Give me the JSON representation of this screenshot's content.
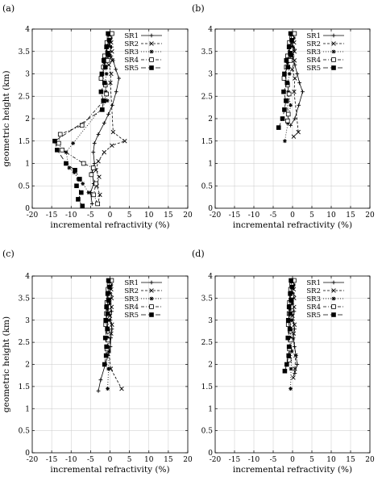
{
  "figure": {
    "panel_labels": [
      "(a)",
      "(b)",
      "(c)",
      "(d)"
    ]
  },
  "chart_data": [
    {
      "type": "line",
      "panel": "(a)",
      "xlabel": "incremental refractivity (%)",
      "ylabel": "geometric height (km)",
      "xlim": [
        -20,
        20
      ],
      "ylim": [
        0,
        4
      ],
      "xticks": [
        -20,
        -15,
        -10,
        -5,
        0,
        5,
        10,
        15,
        20
      ],
      "yticks": [
        0,
        0.5,
        1,
        1.5,
        2,
        2.5,
        3,
        3.5,
        4
      ],
      "grid": true,
      "legend": "top-right",
      "series": [
        {
          "name": "SR1",
          "marker": "plus",
          "dash": "",
          "x": [
            0,
            0.2,
            -0.3,
            0.4,
            -0.2,
            0.3,
            0.8,
            1.5,
            2.3,
            1.6,
            0.6,
            -0.4,
            -1.5,
            -3,
            -4,
            -4.3,
            -4,
            -4.6,
            -4.2,
            -5,
            -4.6
          ],
          "y": [
            3.9,
            3.8,
            3.7,
            3.6,
            3.5,
            3.4,
            3.3,
            3.1,
            2.9,
            2.6,
            2.3,
            2.1,
            1.9,
            1.65,
            1.45,
            1.25,
            1.0,
            0.8,
            0.55,
            0.35,
            0.1
          ]
        },
        {
          "name": "SR2",
          "marker": "x",
          "dash": "3,2",
          "x": [
            0.2,
            -0.3,
            0.3,
            -0.5,
            0.5,
            -0.2,
            0.6,
            -0.3,
            0.3,
            0.1,
            0.8,
            3.8,
            0.5,
            -1.5,
            -3,
            -3.6,
            -2.8,
            -3.4,
            -2.6,
            -3.1
          ],
          "y": [
            3.9,
            3.8,
            3.7,
            3.6,
            3.5,
            3.4,
            3.3,
            3.2,
            3.0,
            2.8,
            1.7,
            1.5,
            1.4,
            1.25,
            1.05,
            0.85,
            0.7,
            0.5,
            0.3,
            0.1
          ]
        },
        {
          "name": "SR3",
          "marker": "star",
          "dash": "1,2",
          "x": [
            -0.3,
            0.2,
            -0.6,
            0.1,
            -0.8,
            -0.4,
            -1.5,
            -0.9,
            -1.3,
            -1.1,
            -0.7,
            -9.5,
            -11.3,
            -10.5,
            -9.2,
            -8.2,
            -7,
            -5.5
          ],
          "y": [
            3.9,
            3.8,
            3.7,
            3.6,
            3.5,
            3.4,
            3.25,
            3.0,
            2.8,
            2.6,
            2.4,
            1.45,
            1.25,
            0.9,
            0.8,
            0.65,
            0.55,
            0.35
          ]
        },
        {
          "name": "SR4",
          "marker": "square",
          "dash": "4,2,1,2",
          "x": [
            0.5,
            -0.2,
            -0.8,
            -0.4,
            -1.4,
            -0.6,
            -1.7,
            -2.3,
            -1.2,
            -0.9,
            -1.6,
            -7.2,
            -12.8,
            -13.2,
            -12.3,
            -6.8,
            -4.3,
            -4.8,
            -3.6,
            -4.2,
            -3.2
          ],
          "y": [
            3.9,
            3.8,
            3.7,
            3.55,
            3.4,
            3.3,
            3.15,
            2.9,
            2.75,
            2.55,
            2.4,
            1.85,
            1.65,
            1.45,
            1.3,
            1.0,
            0.9,
            0.75,
            0.55,
            0.3,
            0.1
          ]
        },
        {
          "name": "SR5",
          "marker": "fsquare",
          "dash": "6,3",
          "x": [
            -0.5,
            -0.2,
            -0.9,
            -0.6,
            -1.6,
            -1.2,
            -2.1,
            -1.4,
            -2.3,
            -1.7,
            -2,
            -14.2,
            -13.6,
            -11.3,
            -9,
            -7.8,
            -8.6,
            -7.4,
            -8.2,
            -7.1
          ],
          "y": [
            3.9,
            3.75,
            3.6,
            3.45,
            3.3,
            3.15,
            3.0,
            2.8,
            2.6,
            2.4,
            2.2,
            1.5,
            1.3,
            1.0,
            0.85,
            0.65,
            0.5,
            0.35,
            0.2,
            0.05
          ]
        }
      ]
    },
    {
      "type": "line",
      "panel": "(b)",
      "xlabel": "incremental refractivity (%)",
      "ylabel": "",
      "xlim": [
        -20,
        20
      ],
      "ylim": [
        0,
        4
      ],
      "xticks": [
        -20,
        -15,
        -10,
        -5,
        0,
        5,
        10,
        15,
        20
      ],
      "yticks": [
        0,
        0.5,
        1,
        1.5,
        2,
        2.5,
        3,
        3.5,
        4
      ],
      "grid": true,
      "legend": "top-right",
      "series": [
        {
          "name": "SR1",
          "marker": "plus",
          "dash": "",
          "x": [
            0,
            0.3,
            -0.2,
            0.5,
            0,
            0.6,
            1.2,
            1.8,
            2.6,
            1.6,
            0.6,
            -0.5
          ],
          "y": [
            3.9,
            3.8,
            3.7,
            3.55,
            3.4,
            3.2,
            3.0,
            2.8,
            2.6,
            2.3,
            2.0,
            1.85
          ]
        },
        {
          "name": "SR2",
          "marker": "x",
          "dash": "3,2",
          "x": [
            0.2,
            -0.2,
            0.4,
            -0.4,
            0.5,
            -0.1,
            0.5,
            -0.1,
            0.6,
            0.4,
            1.5,
            0.3
          ],
          "y": [
            3.9,
            3.8,
            3.7,
            3.6,
            3.5,
            3.4,
            3.3,
            3.1,
            2.9,
            2.6,
            1.7,
            1.6
          ]
        },
        {
          "name": "SR3",
          "marker": "star",
          "dash": "1,2",
          "x": [
            -0.3,
            0.3,
            -0.6,
            0.1,
            -0.8,
            -0.4,
            -1.3,
            -0.8,
            -1.2,
            -1.1,
            -0.5,
            -1.2,
            -2
          ],
          "y": [
            3.9,
            3.8,
            3.7,
            3.6,
            3.5,
            3.4,
            3.25,
            3.0,
            2.8,
            2.6,
            2.3,
            1.9,
            1.5
          ]
        },
        {
          "name": "SR4",
          "marker": "square",
          "dash": "4,2,1,2",
          "x": [
            0.5,
            -0.2,
            -0.8,
            -0.4,
            -1.3,
            -0.6,
            -1.6,
            -2.2,
            -1.3,
            -0.9,
            -1.5,
            -1.1,
            -1.3
          ],
          "y": [
            3.9,
            3.8,
            3.7,
            3.55,
            3.4,
            3.3,
            3.15,
            2.9,
            2.75,
            2.55,
            2.4,
            2.1,
            1.95
          ]
        },
        {
          "name": "SR5",
          "marker": "fsquare",
          "dash": "6,3",
          "x": [
            -0.5,
            -0.2,
            -0.9,
            -0.6,
            -1.6,
            -1.2,
            -2.1,
            -1.4,
            -2.3,
            -1.7,
            -2.1,
            -2.6,
            -3.6
          ],
          "y": [
            3.9,
            3.75,
            3.6,
            3.45,
            3.3,
            3.15,
            3.0,
            2.8,
            2.6,
            2.4,
            2.2,
            2.0,
            1.8
          ]
        }
      ]
    },
    {
      "type": "line",
      "panel": "(c)",
      "xlabel": "incremental refractivity (%)",
      "ylabel": "geometric height (km)",
      "xlim": [
        -20,
        20
      ],
      "ylim": [
        0,
        4
      ],
      "xticks": [
        -20,
        -15,
        -10,
        -5,
        0,
        5,
        10,
        15,
        20
      ],
      "yticks": [
        0,
        0.5,
        1,
        1.5,
        2,
        2.5,
        3,
        3.5,
        4
      ],
      "grid": true,
      "legend": "top-right",
      "series": [
        {
          "name": "SR1",
          "marker": "plus",
          "dash": "",
          "x": [
            0,
            0.2,
            -0.2,
            0.3,
            -0.1,
            0.4,
            0.1,
            0.5,
            0.2,
            0.1,
            -0.5,
            -1.2,
            -2.4,
            -3
          ],
          "y": [
            3.9,
            3.8,
            3.7,
            3.55,
            3.4,
            3.2,
            3.0,
            2.8,
            2.6,
            2.4,
            2.2,
            2.0,
            1.65,
            1.4
          ]
        },
        {
          "name": "SR2",
          "marker": "x",
          "dash": "3,2",
          "x": [
            0.2,
            -0.2,
            0.3,
            -0.3,
            0.4,
            -0.1,
            0.4,
            0,
            0.5,
            0.3,
            -0.3,
            0.2,
            3
          ],
          "y": [
            3.9,
            3.8,
            3.7,
            3.6,
            3.5,
            3.4,
            3.3,
            3.1,
            2.9,
            2.7,
            2.3,
            1.9,
            1.45
          ]
        },
        {
          "name": "SR3",
          "marker": "star",
          "dash": "1,2",
          "x": [
            -0.2,
            0.3,
            -0.4,
            0.1,
            -0.5,
            -0.2,
            -0.7,
            -0.3,
            -0.6,
            -0.5,
            -0.2,
            -0.4,
            -0.6
          ],
          "y": [
            3.9,
            3.8,
            3.7,
            3.6,
            3.5,
            3.4,
            3.25,
            3.0,
            2.8,
            2.6,
            2.3,
            1.9,
            1.45
          ]
        },
        {
          "name": "SR4",
          "marker": "square",
          "dash": "4,2,1,2",
          "x": [
            0.4,
            -0.2,
            -0.5,
            -0.2,
            -0.8,
            -0.3,
            -0.9,
            -1.1,
            -0.6,
            -0.5,
            -0.8
          ],
          "y": [
            3.9,
            3.8,
            3.7,
            3.55,
            3.4,
            3.3,
            3.15,
            2.9,
            2.75,
            2.55,
            2.35
          ]
        },
        {
          "name": "SR5",
          "marker": "fsquare",
          "dash": "6,3",
          "x": [
            -0.4,
            -0.1,
            -0.6,
            -0.4,
            -0.9,
            -0.6,
            -1.1,
            -0.7,
            -1.2,
            -0.9,
            -1,
            -1.4
          ],
          "y": [
            3.9,
            3.75,
            3.6,
            3.45,
            3.3,
            3.15,
            3.0,
            2.8,
            2.6,
            2.4,
            2.2,
            2.0
          ]
        }
      ]
    },
    {
      "type": "line",
      "panel": "(d)",
      "xlabel": "incremental refractivity (%)",
      "ylabel": "",
      "xlim": [
        -20,
        20
      ],
      "ylim": [
        0,
        4
      ],
      "xticks": [
        -20,
        -15,
        -10,
        -5,
        0,
        5,
        10,
        15,
        20
      ],
      "yticks": [
        0,
        0.5,
        1,
        1.5,
        2,
        2.5,
        3,
        3.5,
        4
      ],
      "grid": true,
      "legend": "top-right",
      "series": [
        {
          "name": "SR1",
          "marker": "plus",
          "dash": "",
          "x": [
            0,
            0.2,
            -0.2,
            0.3,
            -0.1,
            0.4,
            0.1,
            0.5,
            0.2,
            0.5,
            0.9,
            1.2,
            0.6
          ],
          "y": [
            3.9,
            3.8,
            3.7,
            3.55,
            3.4,
            3.2,
            3.0,
            2.8,
            2.6,
            2.4,
            2.2,
            2.0,
            1.8
          ]
        },
        {
          "name": "SR2",
          "marker": "x",
          "dash": "3,2",
          "x": [
            0.2,
            -0.2,
            0.3,
            -0.3,
            0.4,
            -0.1,
            0.4,
            0,
            0.5,
            0.3,
            0.8,
            0.6,
            0.2
          ],
          "y": [
            3.9,
            3.8,
            3.7,
            3.6,
            3.5,
            3.4,
            3.3,
            3.1,
            2.9,
            2.7,
            2.2,
            1.9,
            1.7
          ]
        },
        {
          "name": "SR3",
          "marker": "star",
          "dash": "1,2",
          "x": [
            -0.2,
            0.3,
            -0.4,
            0.1,
            -0.5,
            -0.2,
            -0.7,
            -0.3,
            -0.6,
            -0.5,
            -0.2,
            -0.4,
            -0.5
          ],
          "y": [
            3.9,
            3.8,
            3.7,
            3.6,
            3.5,
            3.4,
            3.25,
            3.0,
            2.8,
            2.6,
            2.3,
            1.9,
            1.45
          ]
        },
        {
          "name": "SR4",
          "marker": "square",
          "dash": "4,2,1,2",
          "x": [
            0.4,
            -0.2,
            -0.5,
            -0.2,
            -0.8,
            -0.3,
            -0.9,
            -1.1,
            -0.6,
            -0.5,
            -0.8,
            -0.9
          ],
          "y": [
            3.9,
            3.8,
            3.7,
            3.55,
            3.4,
            3.3,
            3.15,
            2.9,
            2.75,
            2.55,
            2.35,
            2.1
          ]
        },
        {
          "name": "SR5",
          "marker": "fsquare",
          "dash": "6,3",
          "x": [
            -0.4,
            -0.1,
            -0.6,
            -0.4,
            -0.9,
            -0.6,
            -1.1,
            -0.7,
            -1.2,
            -0.9,
            -1,
            -1.5,
            -2
          ],
          "y": [
            3.9,
            3.75,
            3.6,
            3.45,
            3.3,
            3.15,
            3.0,
            2.8,
            2.6,
            2.4,
            2.2,
            2.0,
            1.85
          ]
        }
      ]
    }
  ]
}
